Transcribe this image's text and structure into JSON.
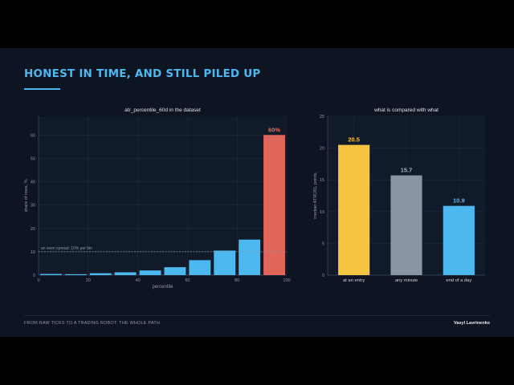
{
  "slide": {
    "title": "HONEST IN TIME, AND STILL PILED UP",
    "footer_left": "FROM RAW TICKS TO A TRADING ROBOT: THE WHOLE PATH",
    "footer_right": "Vasyl Lavrinenko",
    "accent_color": "#4cb8f0",
    "background_color": "#0d1422"
  },
  "chart_data": [
    {
      "type": "bar",
      "title": "atr_percentile_60d in the dataset",
      "xlabel": "percentile",
      "ylabel": "share of rows, %",
      "x_ticks": [
        0,
        20,
        40,
        60,
        80,
        100
      ],
      "y_ticks": [
        0,
        10,
        20,
        30,
        40,
        50,
        60
      ],
      "xlim": [
        0,
        100
      ],
      "ylim": [
        0,
        68
      ],
      "bin_width": 10,
      "bins": [
        5,
        15,
        25,
        35,
        45,
        55,
        65,
        75,
        85,
        95
      ],
      "values": [
        0.5,
        0.4,
        0.8,
        1.2,
        2.0,
        3.4,
        6.4,
        10.5,
        15.2,
        60
      ],
      "highlight_index": 9,
      "highlight_label": "60%",
      "reference_line": {
        "value": 10,
        "label": "an even spread: 10% per bin"
      },
      "colors": {
        "bar": "#4cb8f0",
        "highlight": "#e0655a",
        "highlight_label": "#e86d5f",
        "reference": "#8e97a6"
      },
      "grid": true
    },
    {
      "type": "bar",
      "title": "what is compared with what",
      "xlabel": "",
      "ylabel": "median ATR(20), points",
      "categories": [
        "at an entry",
        "any minute",
        "end of a day"
      ],
      "values": [
        20.5,
        15.7,
        10.9
      ],
      "value_labels": [
        "20.5",
        "15.7",
        "10.9"
      ],
      "y_ticks": [
        0,
        5,
        10,
        15,
        20,
        25
      ],
      "ylim": [
        0,
        25
      ],
      "colors": [
        "#f5c542",
        "#8a94a4",
        "#4cb8f0"
      ],
      "label_colors": [
        "#f5c542",
        "#a8b0be",
        "#4cb8f0"
      ],
      "grid": true
    }
  ]
}
